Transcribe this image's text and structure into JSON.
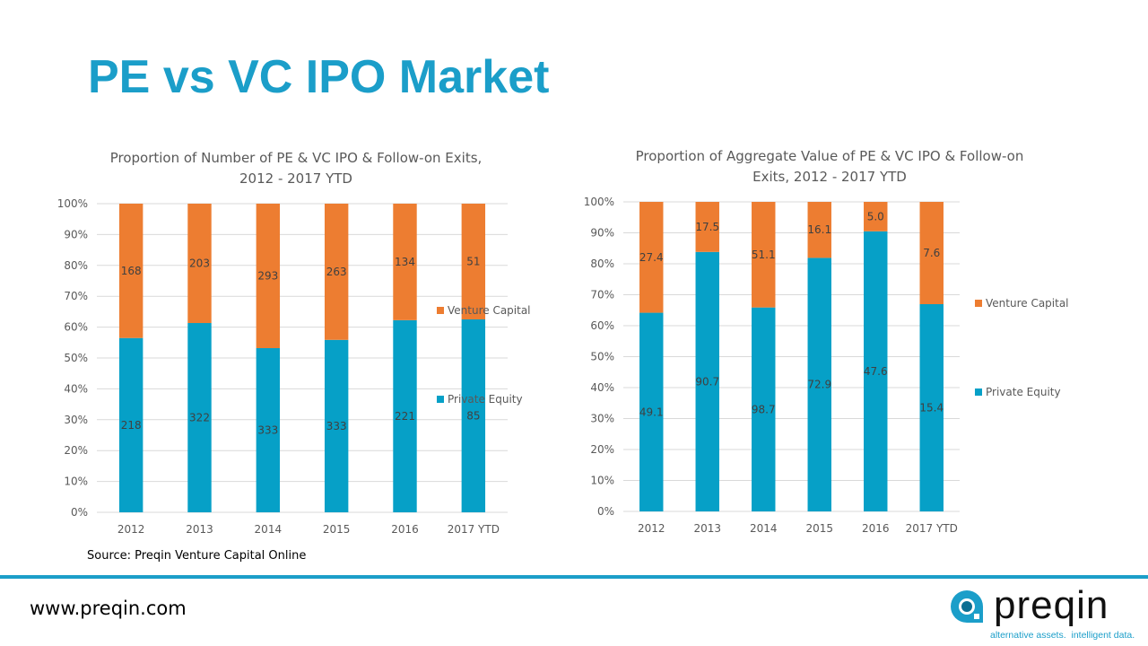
{
  "slide": {
    "title": "PE vs VC IPO Market",
    "source": "Source: Preqin Venture Capital Online",
    "url": "www.preqin.com",
    "logo": {
      "word": "preqin",
      "tagline_a": "alternative assets.",
      "tagline_b": "intelligent data."
    }
  },
  "colors": {
    "vc": "#ed7d31",
    "pe": "#06a0c7",
    "grid": "#d9d9d9",
    "axis_text": "#595959",
    "label_text": "#404040"
  },
  "chart_data": [
    {
      "type": "bar",
      "stacked": "percent",
      "title_lines": [
        "Proportion of Number of PE & VC IPO & Follow-on Exits,",
        "2012 - 2017 YTD"
      ],
      "categories": [
        "2012",
        "2013",
        "2014",
        "2015",
        "2016",
        "2017 YTD"
      ],
      "series": [
        {
          "name": "Private Equity",
          "key": "pe",
          "values": [
            218,
            322,
            333,
            333,
            221,
            85
          ]
        },
        {
          "name": "Venture Capital",
          "key": "vc",
          "values": [
            168,
            203,
            293,
            263,
            134,
            51
          ]
        }
      ],
      "yticks": [
        "0%",
        "10%",
        "20%",
        "30%",
        "40%",
        "50%",
        "60%",
        "70%",
        "80%",
        "90%",
        "100%"
      ],
      "ylim": [
        0,
        100
      ],
      "grid": true,
      "legend": "right",
      "legend_entries": [
        "Venture Capital",
        "Private Equity"
      ],
      "xlabel": "",
      "ylabel": ""
    },
    {
      "type": "bar",
      "stacked": "percent",
      "title_lines": [
        "Proportion of Aggregate Value of PE & VC IPO & Follow-on",
        "Exits, 2012 - 2017 YTD"
      ],
      "categories": [
        "2012",
        "2013",
        "2014",
        "2015",
        "2016",
        "2017 YTD"
      ],
      "series": [
        {
          "name": "Private Equity",
          "key": "pe",
          "values": [
            49.1,
            90.7,
            98.7,
            72.9,
            47.6,
            15.4
          ]
        },
        {
          "name": "Venture Capital",
          "key": "vc",
          "values": [
            27.4,
            17.5,
            51.1,
            16.1,
            5.0,
            7.6
          ]
        }
      ],
      "yticks": [
        "0%",
        "10%",
        "20%",
        "30%",
        "40%",
        "50%",
        "60%",
        "70%",
        "80%",
        "90%",
        "100%"
      ],
      "ylim": [
        0,
        100
      ],
      "grid": true,
      "legend": "right",
      "legend_entries": [
        "Venture Capital",
        "Private Equity"
      ],
      "xlabel": "",
      "ylabel": ""
    }
  ]
}
